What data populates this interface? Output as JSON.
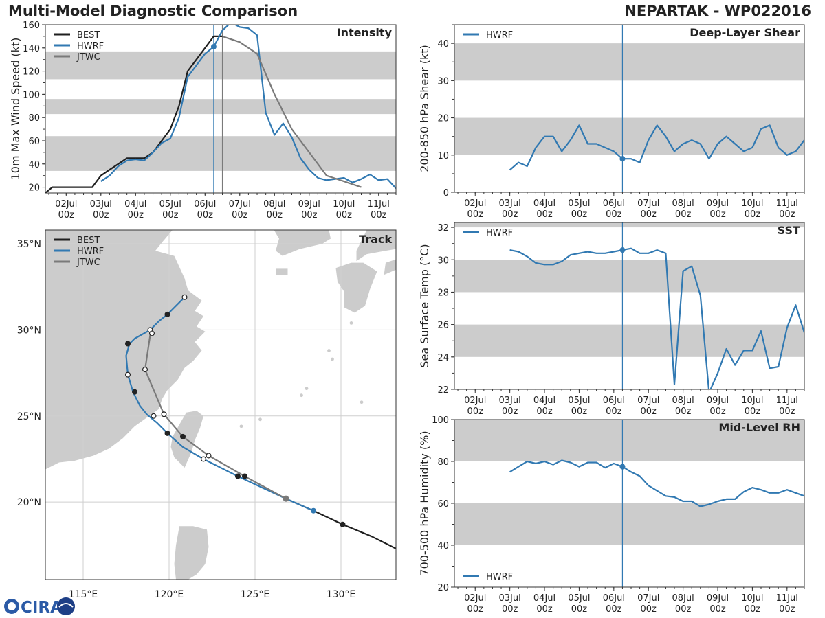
{
  "header": {
    "title": "Multi-Model Diagnostic Comparison",
    "storm": "NEPARTAK - WP022016"
  },
  "logo": {
    "text": "CIRA"
  },
  "colors": {
    "best": "#1f1f1f",
    "hwrf": "#3179b2",
    "jtwc": "#7a7a7a",
    "band": "#cccccc",
    "land": "#cccccc",
    "grid": "#cfcfcf"
  },
  "time_axis": {
    "start_day": 1.4,
    "end_day": 11.5,
    "ticks": [
      {
        "day": 2,
        "label": "02Jul",
        "sub": "00z"
      },
      {
        "day": 3,
        "label": "03Jul",
        "sub": "00z"
      },
      {
        "day": 4,
        "label": "04Jul",
        "sub": "00z"
      },
      {
        "day": 5,
        "label": "05Jul",
        "sub": "00z"
      },
      {
        "day": 6,
        "label": "06Jul",
        "sub": "00z"
      },
      {
        "day": 7,
        "label": "07Jul",
        "sub": "00z"
      },
      {
        "day": 8,
        "label": "08Jul",
        "sub": "00z"
      },
      {
        "day": 9,
        "label": "09Jul",
        "sub": "00z"
      },
      {
        "day": 10,
        "label": "10Jul",
        "sub": "00z"
      },
      {
        "day": 11,
        "label": "11Jul",
        "sub": "00z"
      }
    ]
  },
  "chart_data": [
    {
      "id": "intensity",
      "type": "line",
      "title": "Intensity",
      "ylabel": "10m Max Wind Speed (kt)",
      "ylim": [
        15,
        160
      ],
      "yticks": [
        20,
        40,
        60,
        80,
        100,
        120,
        140,
        160
      ],
      "bands": [
        [
          34,
          64
        ],
        [
          83,
          96
        ],
        [
          113,
          137
        ]
      ],
      "vlines": [
        6.25,
        6.5
      ],
      "legend": [
        "BEST",
        "HWRF",
        "JTWC"
      ],
      "series": [
        {
          "name": "BEST",
          "key": "best",
          "x": [
            1.4,
            1.6,
            1.75,
            2.0,
            2.25,
            2.5,
            2.75,
            3.0,
            3.25,
            3.5,
            3.75,
            4.0,
            4.25,
            4.5,
            4.75,
            5.0,
            5.25,
            5.5,
            5.75,
            6.0,
            6.25,
            6.5
          ],
          "y": [
            15,
            20,
            20,
            20,
            20,
            20,
            20,
            30,
            35,
            40,
            45,
            45,
            45,
            50,
            60,
            70,
            90,
            120,
            130,
            140,
            150,
            150
          ]
        },
        {
          "name": "HWRF",
          "key": "hwrf",
          "x": [
            3.0,
            3.25,
            3.5,
            3.75,
            4.0,
            4.25,
            4.5,
            4.75,
            5.0,
            5.25,
            5.5,
            5.75,
            6.0,
            6.25,
            6.5,
            6.75,
            7.0,
            7.25,
            7.5,
            7.75,
            8.0,
            8.25,
            8.5,
            8.75,
            9.0,
            9.25,
            9.5,
            9.75,
            10.0,
            10.25,
            10.5,
            10.75,
            11.0,
            11.25,
            11.5
          ],
          "y": [
            25,
            30,
            38,
            43,
            44,
            43,
            50,
            58,
            62,
            80,
            115,
            125,
            135,
            141,
            155,
            162,
            158,
            157,
            151,
            84,
            65,
            75,
            63,
            45,
            35,
            28,
            26,
            27,
            28,
            24,
            27,
            31,
            26,
            27,
            19
          ]
        },
        {
          "name": "JTWC",
          "key": "jtwc",
          "x": [
            6.5,
            7.0,
            7.5,
            8.0,
            8.5,
            9.0,
            9.5,
            10.0,
            10.5
          ],
          "y": [
            150,
            145,
            135,
            100,
            70,
            50,
            30,
            25,
            20
          ]
        }
      ],
      "markers": [
        {
          "key": "hwrf",
          "x": 6.25,
          "y": 141
        }
      ]
    },
    {
      "id": "shear",
      "type": "line",
      "title": "Deep-Layer Shear",
      "ylabel": "200-850 hPa Shear (kt)",
      "ylim": [
        0,
        45
      ],
      "yticks": [
        0,
        10,
        20,
        30,
        40
      ],
      "bands": [
        [
          10,
          20
        ],
        [
          30,
          40
        ]
      ],
      "vlines": [
        6.25
      ],
      "legend": [
        "HWRF"
      ],
      "series": [
        {
          "name": "HWRF",
          "key": "hwrf",
          "x": [
            3.0,
            3.25,
            3.5,
            3.75,
            4.0,
            4.25,
            4.5,
            4.75,
            5.0,
            5.25,
            5.5,
            5.75,
            6.0,
            6.25,
            6.5,
            6.75,
            7.0,
            7.25,
            7.5,
            7.75,
            8.0,
            8.25,
            8.5,
            8.75,
            9.0,
            9.25,
            9.5,
            9.75,
            10.0,
            10.25,
            10.5,
            10.75,
            11.0,
            11.25,
            11.5
          ],
          "y": [
            6,
            8,
            7,
            12,
            15,
            15,
            11,
            14,
            18,
            13,
            13,
            12,
            11,
            9,
            9,
            8,
            14,
            18,
            15,
            11,
            13,
            14,
            13,
            9,
            13,
            15,
            13,
            11,
            12,
            17,
            18,
            12,
            10,
            11,
            14
          ]
        }
      ],
      "markers": [
        {
          "key": "hwrf",
          "x": 6.25,
          "y": 9
        }
      ]
    },
    {
      "id": "sst",
      "type": "line",
      "title": "SST",
      "ylabel": "Sea Surface Temp (°C)",
      "ylim": [
        22,
        32.3
      ],
      "yticks": [
        22,
        24,
        26,
        28,
        30,
        32
      ],
      "bands": [
        [
          24,
          26
        ],
        [
          28,
          30
        ],
        [
          32,
          32.3
        ]
      ],
      "vlines": [
        6.25
      ],
      "legend": [
        "HWRF"
      ],
      "series": [
        {
          "name": "HWRF",
          "key": "hwrf",
          "x": [
            3.0,
            3.25,
            3.5,
            3.75,
            4.0,
            4.25,
            4.5,
            4.75,
            5.0,
            5.25,
            5.5,
            5.75,
            6.0,
            6.25,
            6.5,
            6.75,
            7.0,
            7.25,
            7.5,
            7.75,
            8.0,
            8.25,
            8.5,
            8.75,
            9.0,
            9.25,
            9.5,
            9.75,
            10.0,
            10.25,
            10.5,
            10.75,
            11.0,
            11.25,
            11.5
          ],
          "y": [
            30.6,
            30.5,
            30.2,
            29.8,
            29.7,
            29.7,
            29.9,
            30.3,
            30.4,
            30.5,
            30.4,
            30.4,
            30.5,
            30.6,
            30.7,
            30.4,
            30.4,
            30.6,
            30.4,
            22.3,
            29.3,
            29.6,
            27.8,
            21.8,
            23.0,
            24.5,
            23.5,
            24.4,
            24.4,
            25.6,
            23.3,
            23.4,
            25.8,
            27.2,
            25.5
          ]
        }
      ],
      "markers": [
        {
          "key": "hwrf",
          "x": 6.25,
          "y": 30.6
        }
      ]
    },
    {
      "id": "rh",
      "type": "line",
      "title": "Mid-Level RH",
      "ylabel": "700-500 hPa Humidity (%)",
      "ylim": [
        20,
        100
      ],
      "yticks": [
        20,
        40,
        60,
        80,
        100
      ],
      "bands": [
        [
          40,
          60
        ],
        [
          80,
          100
        ]
      ],
      "vlines": [
        6.25
      ],
      "legend": [
        "HWRF"
      ],
      "legend_pos": "bottom-left",
      "series": [
        {
          "name": "HWRF",
          "key": "hwrf",
          "x": [
            3.0,
            3.25,
            3.5,
            3.75,
            4.0,
            4.25,
            4.5,
            4.75,
            5.0,
            5.25,
            5.5,
            5.75,
            6.0,
            6.25,
            6.5,
            6.75,
            7.0,
            7.25,
            7.5,
            7.75,
            8.0,
            8.25,
            8.5,
            8.75,
            9.0,
            9.25,
            9.5,
            9.75,
            10.0,
            10.25,
            10.5,
            10.75,
            11.0,
            11.25,
            11.5
          ],
          "y": [
            75,
            77.5,
            80,
            79,
            80,
            78.5,
            80.5,
            79.5,
            77.5,
            79.5,
            79.5,
            77,
            79,
            77.5,
            75,
            73,
            68.5,
            66,
            63.5,
            63,
            61,
            61,
            58.5,
            59.5,
            61,
            62,
            62,
            65.5,
            67.5,
            66.5,
            65,
            65,
            66.5,
            65,
            63.5
          ]
        }
      ],
      "markers": [
        {
          "key": "hwrf",
          "x": 6.25,
          "y": 77.5
        }
      ]
    },
    {
      "id": "track",
      "type": "scatter",
      "title": "Track",
      "xlim": [
        112.8,
        133.2
      ],
      "ylim": [
        15.5,
        35.8
      ],
      "xticks": [
        {
          "v": 115,
          "label": "115°E"
        },
        {
          "v": 120,
          "label": "120°E"
        },
        {
          "v": 125,
          "label": "125°E"
        },
        {
          "v": 130,
          "label": "130°E"
        }
      ],
      "yticks": [
        {
          "v": 20,
          "label": "20°N"
        },
        {
          "v": 25,
          "label": "25°N"
        },
        {
          "v": 30,
          "label": "30°N"
        },
        {
          "v": 35,
          "label": "35°N"
        }
      ],
      "legend": [
        "BEST",
        "HWRF",
        "JTWC"
      ],
      "series": [
        {
          "name": "BEST",
          "key": "best",
          "lon": [
            133.2,
            131.8,
            130.1,
            128.4,
            126.8
          ],
          "lat": [
            17.3,
            18.0,
            18.7,
            19.5,
            20.2
          ],
          "filled": [
            130.1
          ]
        },
        {
          "name": "HWRF",
          "key": "hwrf",
          "lon": [
            128.4,
            126.8,
            124.0,
            122.0,
            120.8,
            119.9,
            119.3,
            118.7,
            118.3,
            117.9,
            117.6,
            117.5,
            117.7,
            118.0,
            118.9,
            119.4,
            119.9,
            120.4,
            120.9
          ],
          "lat": [
            19.5,
            20.2,
            21.5,
            22.5,
            23.2,
            24.0,
            24.6,
            25.1,
            25.6,
            26.4,
            27.4,
            28.5,
            29.2,
            29.5,
            30.0,
            30.5,
            30.9,
            31.4,
            31.9
          ]
        },
        {
          "name": "JTWC",
          "key": "jtwc",
          "lon": [
            126.8,
            124.4,
            122.3,
            120.8,
            119.7,
            118.6,
            118.9,
            119.1
          ],
          "lat": [
            20.2,
            21.5,
            22.7,
            23.8,
            25.1,
            27.7,
            29.7,
            29.8
          ]
        }
      ],
      "best_points": [
        [
          130.1,
          18.7
        ],
        [
          124.0,
          21.5
        ],
        [
          124.4,
          21.5
        ],
        [
          119.9,
          24.0
        ],
        [
          120.8,
          23.8
        ],
        [
          118.0,
          26.4
        ],
        [
          117.6,
          29.2
        ],
        [
          119.9,
          30.9
        ]
      ],
      "open_points": [
        [
          122.0,
          22.5
        ],
        [
          122.3,
          22.7
        ],
        [
          119.1,
          25.0
        ],
        [
          119.7,
          25.1
        ],
        [
          117.6,
          27.4
        ],
        [
          118.6,
          27.7
        ],
        [
          118.9,
          30.0
        ],
        [
          119.0,
          29.8
        ],
        [
          120.9,
          31.9
        ]
      ],
      "grey_points": [
        [
          126.8,
          20.2
        ]
      ],
      "hwrf_points": [
        [
          128.4,
          19.5
        ]
      ]
    }
  ]
}
